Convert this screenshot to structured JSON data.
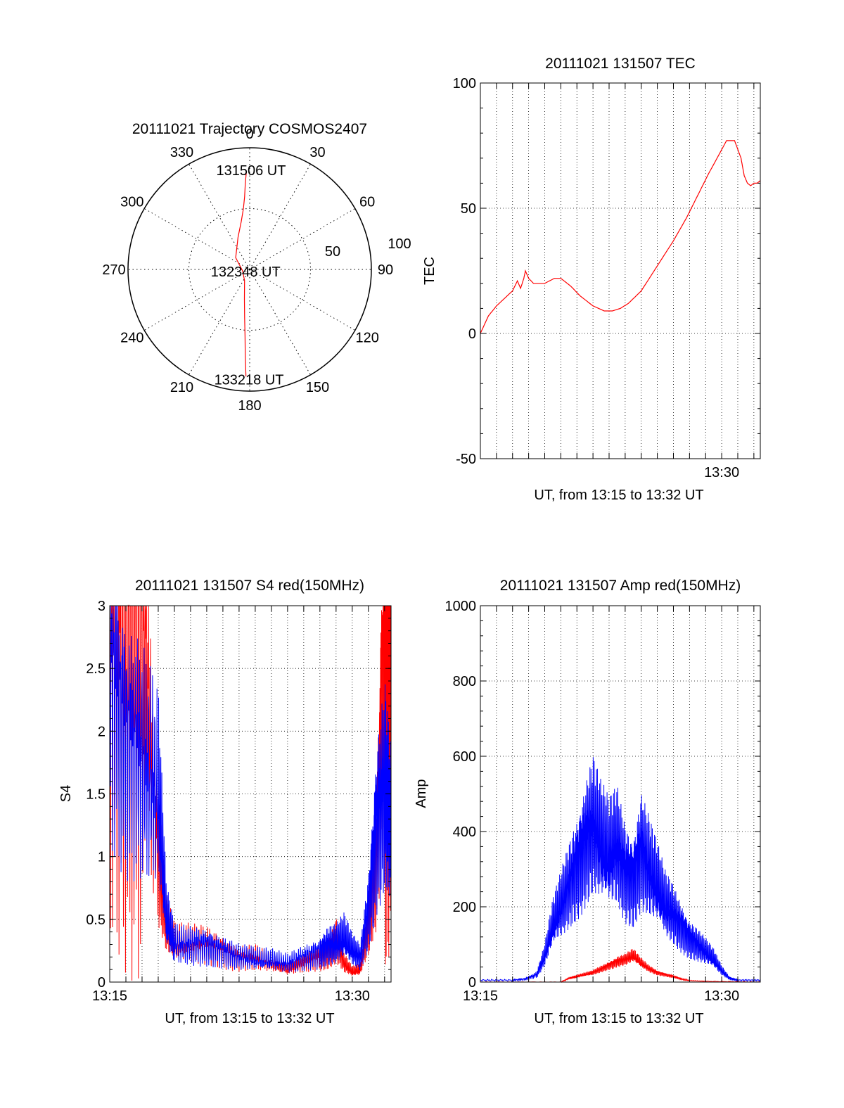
{
  "colors": {
    "red": "#ff0000",
    "blue": "#0000ff",
    "axis": "#000000",
    "grid": "#000000"
  },
  "chart_data": [
    {
      "id": "trajectory",
      "type": "scatter",
      "projection": "polar",
      "title": "20111021 Trajectory COSMOS2407",
      "azimuth_labels": [
        "0",
        "30",
        "60",
        "90",
        "120",
        "150",
        "180",
        "210",
        "240",
        "270",
        "300",
        "330"
      ],
      "radial_labels": [
        "50",
        "100"
      ],
      "rlim": [
        0,
        100
      ],
      "grid": true,
      "series": [
        {
          "color": "#ff0000",
          "points": [
            [
              358,
              80
            ],
            [
              357,
              70
            ],
            [
              356,
              60
            ],
            [
              354,
              50
            ],
            [
              350,
              40
            ],
            [
              340,
              28
            ],
            [
              310,
              15
            ],
            [
              260,
              6
            ],
            [
              205,
              10
            ],
            [
              190,
              25
            ],
            [
              186,
              40
            ],
            [
              184,
              55
            ],
            [
              183,
              70
            ],
            [
              182,
              88
            ]
          ]
        }
      ],
      "annotations": [
        {
          "text": "131506 UT",
          "az": 359,
          "r": 82
        },
        {
          "text": "132348 UT",
          "az": 260,
          "r": 6
        },
        {
          "text": "133218 UT",
          "az": 182,
          "r": 90
        }
      ]
    },
    {
      "id": "tec",
      "type": "line",
      "title": "20111021 131507 TEC",
      "xlabel": "UT, from 13:15 to 13:32 UT",
      "ylabel": "TEC",
      "x_unit": "minutes after 13:15",
      "xlim": [
        0,
        17.4
      ],
      "ylim": [
        -50,
        100
      ],
      "yticks": [
        -50,
        0,
        50,
        100
      ],
      "xticks": [
        {
          "value": 15,
          "label": "13:30"
        }
      ],
      "grid": true,
      "series": [
        {
          "color": "#ff0000",
          "x": [
            0,
            0.5,
            1.0,
            1.5,
            2.0,
            2.3,
            2.5,
            2.7,
            2.8,
            3.0,
            3.3,
            4.0,
            4.6,
            5.0,
            5.6,
            6.2,
            7.0,
            7.7,
            8.2,
            8.7,
            9.2,
            10.0,
            11.0,
            12.0,
            12.8,
            13.5,
            14.2,
            14.8,
            15.3,
            15.8,
            16.2,
            16.4,
            16.6,
            16.8,
            17.0,
            17.2,
            17.4
          ],
          "y": [
            0,
            7,
            11,
            14,
            17,
            21,
            18,
            22,
            25,
            22,
            20,
            20,
            22,
            22,
            19,
            15,
            11,
            9,
            9,
            10,
            12,
            17,
            27,
            37,
            46,
            55,
            64,
            71,
            77,
            77,
            70,
            63,
            60,
            59,
            60,
            60,
            61
          ]
        }
      ]
    },
    {
      "id": "s4",
      "type": "line",
      "title": "20111021 131507 S4 red(150MHz)",
      "xlabel": "UT, from 13:15 to 13:32 UT",
      "ylabel": "S4",
      "x_unit": "minutes after 13:15",
      "xlim": [
        0,
        17.4
      ],
      "ylim": [
        0,
        3
      ],
      "yticks": [
        0,
        0.5,
        1,
        1.5,
        2,
        2.5,
        3
      ],
      "ytick_labels": [
        "0",
        "0.5",
        "1",
        "1.5",
        "2",
        "2.5",
        "3"
      ],
      "xticks": [
        {
          "value": 0,
          "label": "13:15"
        },
        {
          "value": 15,
          "label": "13:30"
        }
      ],
      "grid": true,
      "series": [
        {
          "name": "red",
          "color": "#ff0000",
          "x": [
            0,
            1,
            2,
            3,
            3.5,
            4,
            5,
            6,
            7,
            8,
            9,
            10,
            11,
            12,
            13,
            13.5,
            14,
            14.5,
            15,
            15.5,
            16,
            16.5,
            17,
            17.4
          ],
          "y": [
            3,
            3,
            3,
            1.0,
            0.45,
            0.3,
            0.3,
            0.3,
            0.25,
            0.2,
            0.2,
            0.15,
            0.1,
            0.15,
            0.2,
            0.25,
            0.35,
            0.15,
            0.08,
            0.1,
            0.45,
            1.0,
            3,
            3
          ]
        },
        {
          "name": "blue",
          "color": "#0000ff",
          "x": [
            0,
            1,
            2,
            3,
            3.5,
            4,
            5,
            6,
            7,
            8,
            9,
            10,
            11,
            12,
            13,
            13.5,
            14,
            14.5,
            15,
            15.5,
            16,
            16.5,
            17,
            17.4
          ],
          "y": [
            2.5,
            2,
            1.8,
            1.5,
            0.5,
            0.3,
            0.3,
            0.3,
            0.25,
            0.2,
            0.18,
            0.17,
            0.15,
            0.2,
            0.25,
            0.3,
            0.3,
            0.35,
            0.25,
            0.2,
            0.6,
            1.3,
            1.6,
            1.2
          ]
        }
      ]
    },
    {
      "id": "amp",
      "type": "line",
      "title": "20111021 131507 Amp red(150MHz)",
      "xlabel": "UT, from 13:15 to 13:32 UT",
      "ylabel": "Amp",
      "x_unit": "minutes after 13:15",
      "xlim": [
        0,
        17.4
      ],
      "ylim": [
        0,
        1000
      ],
      "yticks": [
        0,
        200,
        400,
        600,
        800,
        1000
      ],
      "xticks": [
        {
          "value": 0,
          "label": "13:15"
        },
        {
          "value": 15,
          "label": "13:30"
        }
      ],
      "grid": true,
      "series": [
        {
          "name": "blue",
          "color": "#0000ff",
          "x": [
            0,
            2,
            2.8,
            3.5,
            4.0,
            4.5,
            5.0,
            5.5,
            6.0,
            6.5,
            7.0,
            7.5,
            8.0,
            8.5,
            9.0,
            9.5,
            10.0,
            10.5,
            11.0,
            11.5,
            12.0,
            12.5,
            13.0,
            13.5,
            14.0,
            14.5,
            15.0,
            15.5,
            16,
            17.4
          ],
          "y": [
            5,
            5,
            8,
            20,
            70,
            150,
            200,
            260,
            320,
            380,
            420,
            360,
            330,
            360,
            300,
            280,
            360,
            300,
            250,
            200,
            180,
            150,
            120,
            100,
            80,
            60,
            30,
            10,
            5,
            5
          ]
        },
        {
          "name": "red",
          "color": "#ff0000",
          "x": [
            0,
            5,
            5.5,
            6.0,
            6.5,
            7.0,
            7.5,
            8.0,
            8.5,
            9.0,
            9.5,
            10.0,
            10.5,
            11.0,
            11.5,
            12.0,
            12.5,
            13,
            14,
            17.4
          ],
          "y": [
            0,
            0,
            10,
            15,
            20,
            25,
            35,
            45,
            55,
            60,
            70,
            50,
            35,
            25,
            20,
            15,
            8,
            4,
            2,
            0
          ]
        }
      ]
    }
  ]
}
